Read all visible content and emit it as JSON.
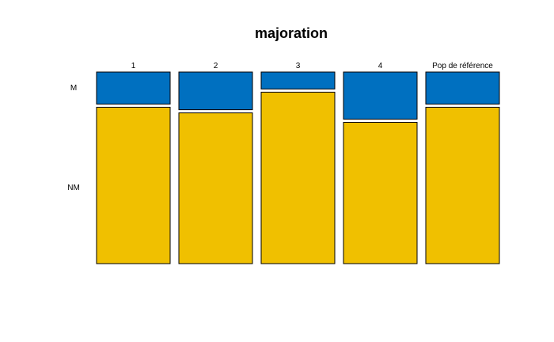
{
  "chart_data": {
    "type": "mosaic",
    "title": "majoration",
    "categories": [
      "1",
      "2",
      "3",
      "4",
      "Pop de référence"
    ],
    "rows": [
      "M",
      "NM"
    ],
    "series": [
      {
        "name": "M",
        "color": "#0070C0",
        "values": [
          0.17,
          0.2,
          0.09,
          0.25,
          0.17
        ]
      },
      {
        "name": "NM",
        "color": "#F0C000",
        "values": [
          0.83,
          0.8,
          0.91,
          0.75,
          0.83
        ]
      }
    ]
  }
}
